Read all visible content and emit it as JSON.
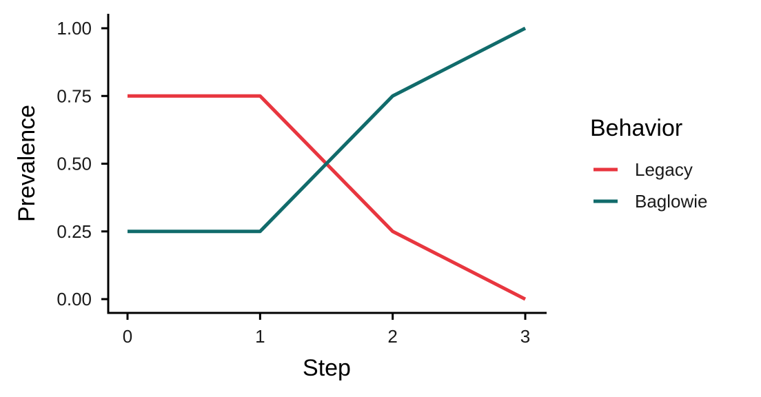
{
  "chart_data": {
    "type": "line",
    "xlabel": "Step",
    "ylabel": "Prevalence",
    "x": [
      0,
      1,
      2,
      3
    ],
    "x_ticks": [
      "0",
      "1",
      "2",
      "3"
    ],
    "y_ticks": [
      "0.00",
      "0.25",
      "0.50",
      "0.75",
      "1.00"
    ],
    "xlim": [
      -0.15,
      3.15
    ],
    "ylim": [
      -0.05,
      1.05
    ],
    "grid": false,
    "legend": {
      "title": "Behavior",
      "placement": "right"
    },
    "series": [
      {
        "name": "Legacy",
        "values": [
          0.75,
          0.75,
          0.25,
          0.0
        ],
        "color": "#E8363F"
      },
      {
        "name": "Baglowie",
        "values": [
          0.25,
          0.25,
          0.75,
          1.0
        ],
        "color": "#116B6B"
      }
    ]
  }
}
